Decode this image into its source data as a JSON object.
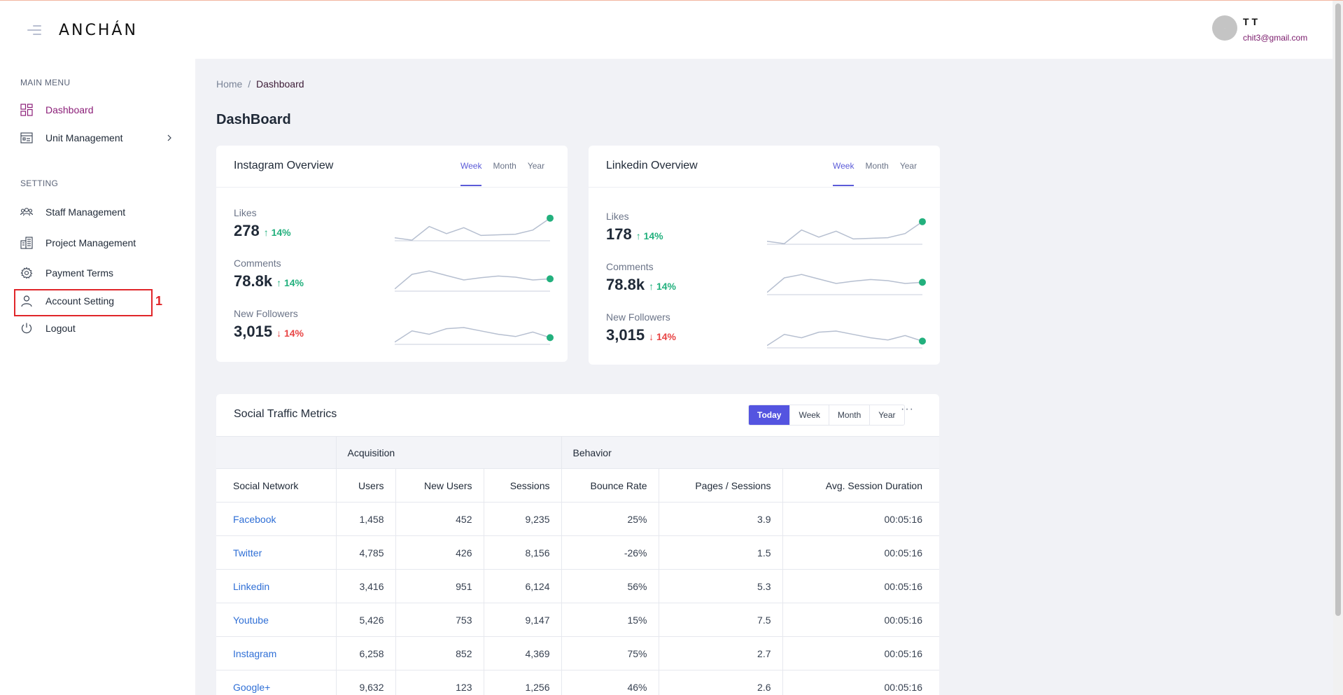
{
  "header": {
    "logo": "ANCHÁN",
    "user": {
      "name": "T T",
      "email": "chit3@gmail.com"
    }
  },
  "sidebar": {
    "main_menu_label": "MAIN MENU",
    "setting_label": "SETTING",
    "items": [
      {
        "label": "Dashboard",
        "icon": "grid-icon"
      },
      {
        "label": "Unit Management",
        "icon": "calendar-icon"
      },
      {
        "label": "Staff Management",
        "icon": "users-icon"
      },
      {
        "label": "Project Management",
        "icon": "buildings-icon"
      },
      {
        "label": "Payment Terms",
        "icon": "gear-icon"
      },
      {
        "label": "Account Setting",
        "icon": "user-icon"
      },
      {
        "label": "Logout",
        "icon": "power-icon"
      }
    ],
    "annotation": "1"
  },
  "breadcrumb": {
    "home": "Home",
    "separator": "/",
    "current": "Dashboard"
  },
  "page_title": "DashBoard",
  "tabs": [
    "Week",
    "Month",
    "Year"
  ],
  "instagram": {
    "title": "Instagram Overview",
    "metrics": [
      {
        "label": "Likes",
        "value": "278",
        "delta": "↑ 14%",
        "trend": "up"
      },
      {
        "label": "Comments",
        "value": "78.8k",
        "delta": "↑ 14%",
        "trend": "up"
      },
      {
        "label": "New Followers",
        "value": "3,015",
        "delta": "↓ 14%",
        "trend": "down"
      }
    ]
  },
  "linkedin": {
    "title": "Linkedin Overview",
    "metrics": [
      {
        "label": "Likes",
        "value": "178",
        "delta": "↑ 14%",
        "trend": "up"
      },
      {
        "label": "Comments",
        "value": "78.8k",
        "delta": "↑ 14%",
        "trend": "up"
      },
      {
        "label": "New Followers",
        "value": "3,015",
        "delta": "↓ 14%",
        "trend": "down"
      }
    ]
  },
  "sparklines": {
    "likes": [
      5,
      1,
      24,
      12,
      22,
      9,
      10,
      11,
      18,
      38
    ],
    "comments": [
      4,
      30,
      36,
      28,
      20,
      24,
      27,
      25,
      20,
      22
    ],
    "followers": [
      4,
      24,
      18,
      28,
      30,
      24,
      18,
      14,
      22,
      12
    ]
  },
  "traffic": {
    "title": "Social Traffic Metrics",
    "periods": [
      "Today",
      "Week",
      "Month",
      "Year"
    ],
    "more": "···",
    "groups": [
      "Acquisition",
      "Behavior"
    ],
    "columns": [
      "Social Network",
      "Users",
      "New Users",
      "Sessions",
      "Bounce Rate",
      "Pages / Sessions",
      "Avg. Session Duration"
    ],
    "rows": [
      [
        "Facebook",
        "1,458",
        "452",
        "9,235",
        "25%",
        "3.9",
        "00:05:16"
      ],
      [
        "Twitter",
        "4,785",
        "426",
        "8,156",
        "-26%",
        "1.5",
        "00:05:16"
      ],
      [
        "Linkedin",
        "3,416",
        "951",
        "6,124",
        "56%",
        "5.3",
        "00:05:16"
      ],
      [
        "Youtube",
        "5,426",
        "753",
        "9,147",
        "15%",
        "7.5",
        "00:05:16"
      ],
      [
        "Instagram",
        "6,258",
        "852",
        "4,369",
        "75%",
        "2.7",
        "00:05:16"
      ],
      [
        "Google+",
        "9,632",
        "123",
        "1,256",
        "46%",
        "2.6",
        "00:05:16"
      ]
    ]
  },
  "colors": {
    "accent": "#5454e0",
    "active_nav": "#8b1e78",
    "up": "#22b07d",
    "down": "#e84545",
    "link": "#2f6fd6"
  }
}
